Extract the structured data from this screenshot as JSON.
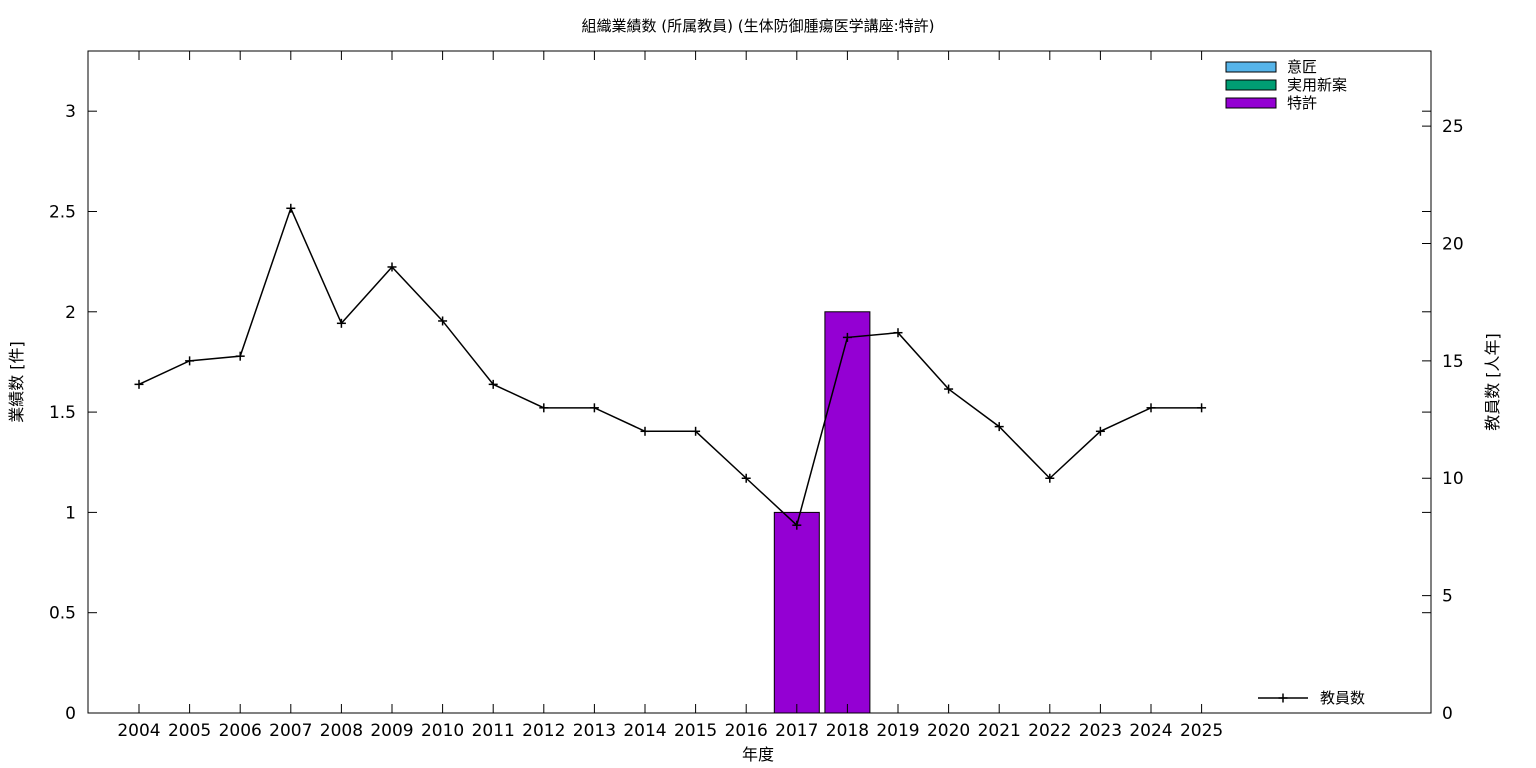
{
  "chart_data": {
    "type": "bar",
    "title": "組織業績数 (所属教員) (生体防御腫瘍医学講座:特許)",
    "xlabel": "年度",
    "ylabel_left": "業績数 [件]",
    "ylabel_right": "教員数 [人年]",
    "categories": [
      "2004",
      "2005",
      "2006",
      "2007",
      "2008",
      "2009",
      "2010",
      "2011",
      "2012",
      "2013",
      "2014",
      "2015",
      "2016",
      "2017",
      "2018",
      "2019",
      "2020",
      "2021",
      "2022",
      "2023",
      "2024",
      "2025"
    ],
    "ylim_left": [
      0,
      3.3
    ],
    "yticks_left": [
      "0",
      "0.5",
      "1",
      "1.5",
      "2",
      "2.5",
      "3"
    ],
    "ylim_right": [
      0,
      28.2
    ],
    "yticks_right": [
      "0",
      "5",
      "10",
      "15",
      "20",
      "25"
    ],
    "grid": false,
    "bar_legend_placement": "top-right",
    "line_legend_placement": "bottom-right",
    "series": [
      {
        "name": "意匠",
        "kind": "bar",
        "color": "#56b4e9",
        "values": [
          0,
          0,
          0,
          0,
          0,
          0,
          0,
          0,
          0,
          0,
          0,
          0,
          0,
          0,
          0,
          0,
          0,
          0,
          0,
          0,
          0,
          0
        ]
      },
      {
        "name": "実用新案",
        "kind": "bar",
        "color": "#009e73",
        "values": [
          0,
          0,
          0,
          0,
          0,
          0,
          0,
          0,
          0,
          0,
          0,
          0,
          0,
          0,
          0,
          0,
          0,
          0,
          0,
          0,
          0,
          0
        ]
      },
      {
        "name": "特許",
        "kind": "bar",
        "color": "#9400d3",
        "values": [
          0,
          0,
          0,
          0,
          0,
          0,
          0,
          0,
          0,
          0,
          0,
          0,
          0,
          1,
          2,
          0,
          0,
          0,
          0,
          0,
          0,
          0
        ]
      },
      {
        "name": "教員数",
        "kind": "line",
        "axis": "right",
        "color": "#000000",
        "values": [
          14,
          15,
          15.2,
          21.5,
          16.6,
          19,
          16.7,
          14,
          13,
          13,
          12,
          12,
          10,
          8,
          16,
          16.2,
          13.8,
          12.2,
          10,
          12,
          13,
          13
        ]
      }
    ]
  }
}
